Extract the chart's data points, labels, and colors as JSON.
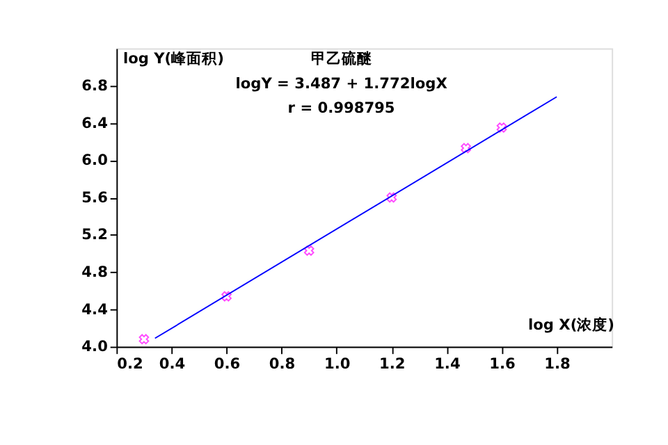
{
  "chart_data": {
    "type": "scatter",
    "title": "甲乙硫醚",
    "xlabel": "log X(浓度)",
    "ylabel": "log Y(峰面积)",
    "annotations": [
      "logY = 3.487 + 1.772logX",
      "r = 0.998795"
    ],
    "series": [
      {
        "type": "scatter",
        "color": "#ff00ff",
        "marker": "cross",
        "x": [
          0.3,
          0.6,
          0.9,
          1.2,
          1.47,
          1.6
        ],
        "values": [
          4.08,
          4.54,
          5.03,
          5.6,
          6.13,
          6.35
        ]
      },
      {
        "type": "line",
        "color": "#0000ff",
        "marker": "none",
        "line_style": "solid",
        "x": [
          0.34,
          1.8
        ],
        "values": [
          4.09,
          6.68
        ]
      }
    ],
    "xlim": [
      0.2,
      2.0
    ],
    "ylim": [
      4.0,
      7.2
    ],
    "xticks": [
      0.2,
      0.4,
      0.6,
      0.8,
      {
        "value": 1,
        "label": "1.0"
      },
      1.2,
      1.4,
      1.6,
      1.8
    ],
    "yticks": [
      {
        "value": 4,
        "label": "4.0"
      },
      4.4,
      4.8,
      5.2,
      5.6,
      {
        "value": 6,
        "label": "6.0"
      },
      6.4,
      6.8
    ],
    "grid": false
  }
}
